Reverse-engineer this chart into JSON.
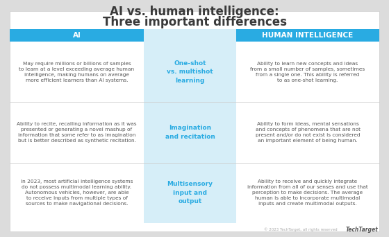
{
  "title_line1": "AI vs. human intelligence:",
  "title_line2": "Three important differences",
  "header_ai": "AI",
  "header_human": "HUMAN INTELLIGENCE",
  "header_bg_color": "#29ABE2",
  "header_text_color": "#ffffff",
  "center_bg_color": "#D6EEF8",
  "center_text_color": "#29ABE2",
  "outer_bg": "#DCDCDC",
  "body_text_color": "#555555",
  "title_color": "#3a3a3a",
  "divider_color": "#cccccc",
  "rows": [
    {
      "center": "One-shot\nvs. multishot\nlearning",
      "ai": "May require millions or billions of samples\nto learn at a level exceeding average human\nintelligence, making humans on average\nmore efficient learners than AI systems.",
      "human": "Ability to learn new concepts and ideas\nfrom a small number of samples, sometimes\nfrom a single one. This ability is referred\nto as one-shot learning."
    },
    {
      "center": "Imagination\nand recitation",
      "ai": "Ability to recite, recalling information as it was\npresented or generating a novel mashup of\ninformation that some refer to as imagination\nbut is better described as synthetic recitation.",
      "human": "Ability to form ideas, mental sensations\nand concepts of phenomena that are not\npresent and/or do not exist is considered\nan important element of being human."
    },
    {
      "center": "Multisensory\ninput and\noutput",
      "ai": "In 2023, most artificial intelligence systems\ndo not possess multimodal learning ability.\nAutonomous vehicles, however, are able\nto receive inputs from multiple types of\nsources to make navigational decisions.",
      "human": "Ability to receive and quickly integrate\ninformation from all of our senses and use that\nperception to make decisions. The average\nhuman is able to incorporate multimodal\ninputs and create multimodal outputs."
    }
  ],
  "footer_text": "© 2023 TechTarget, all rights reserved   ",
  "footer_logo": "TechTarget"
}
